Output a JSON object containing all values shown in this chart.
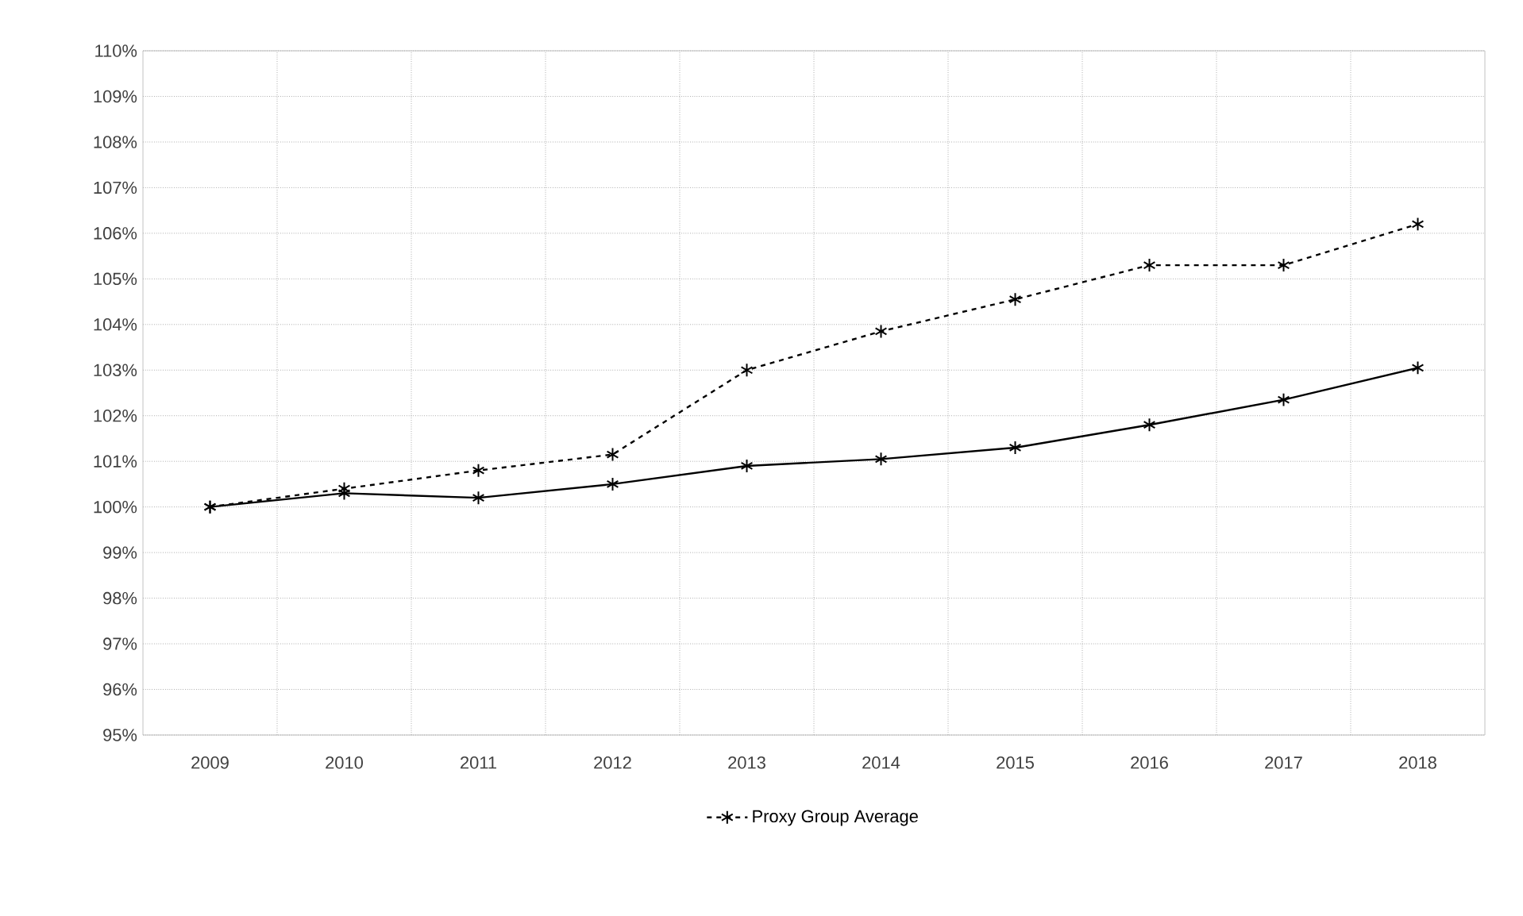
{
  "chart_data": {
    "type": "line",
    "categories": [
      "2009",
      "2010",
      "2011",
      "2012",
      "2013",
      "2014",
      "2015",
      "2016",
      "2017",
      "2018"
    ],
    "series": [
      {
        "name": "Proxy Group Average",
        "color": "#000000",
        "line_style": "dashed",
        "values": [
          100,
          100.4,
          100.8,
          101.15,
          103.0,
          103.85,
          104.55,
          105.3,
          105.3,
          106.2
        ]
      },
      {
        "color": "#000000",
        "line_style": "solid",
        "values": [
          100,
          100.3,
          100.2,
          100.5,
          100.9,
          101.05,
          101.3,
          101.8,
          102.35,
          103.05
        ]
      }
    ],
    "ylim": [
      95,
      110
    ],
    "yticks": [
      {
        "value": 95,
        "label": "95%"
      },
      {
        "value": 96,
        "label": "96%"
      },
      {
        "value": 97,
        "label": "97%"
      },
      {
        "value": 98,
        "label": "98%"
      },
      {
        "value": 99,
        "label": "99%"
      },
      {
        "value": 100,
        "label": "100%"
      },
      {
        "value": 101,
        "label": "101%"
      },
      {
        "value": 102,
        "label": "102%"
      },
      {
        "value": 103,
        "label": "103%"
      },
      {
        "value": 104,
        "label": "104%"
      },
      {
        "value": 105,
        "label": "105%"
      },
      {
        "value": 106,
        "label": "106%"
      },
      {
        "value": 107,
        "label": "107%"
      },
      {
        "value": 108,
        "label": "108%"
      },
      {
        "value": 109,
        "label": "109%"
      },
      {
        "value": 110,
        "label": "110%"
      }
    ],
    "grid": true,
    "legend": "bottom",
    "marker": "cross"
  }
}
